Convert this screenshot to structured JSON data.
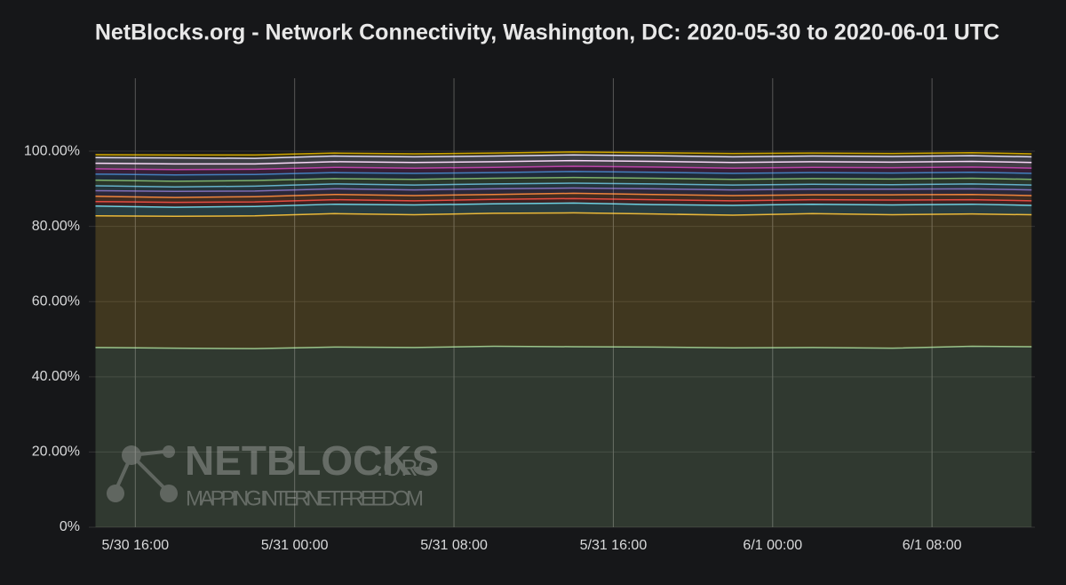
{
  "chart_data": {
    "type": "stacked_area",
    "title": "NetBlocks.org - Network Connectivity, Washington, DC: 2020-05-30 to 2020-06-01 UTC",
    "watermark": {
      "brand": "NETBLOCKS",
      "suffix": ".ORG",
      "tagline": "MAPPING INTERNET FREEDOM"
    },
    "x": [
      "5/30 14:00",
      "5/30 18:00",
      "5/30 22:00",
      "5/31 02:00",
      "5/31 06:00",
      "5/31 10:00",
      "5/31 14:00",
      "5/31 18:00",
      "5/31 22:00",
      "6/1 02:00",
      "6/1 06:00",
      "6/1 10:00",
      "6/1 13:00"
    ],
    "xlim": [
      "5/30 13:40",
      "6/1 13:10"
    ],
    "xticks": [
      "5/30 16:00",
      "5/31 00:00",
      "5/31 08:00",
      "5/31 16:00",
      "6/1 00:00",
      "6/1 08:00"
    ],
    "ylim": [
      0,
      119.4
    ],
    "yticks": [
      {
        "value": 0,
        "label": "0%"
      },
      {
        "value": 20,
        "label": "20.00%"
      },
      {
        "value": 40,
        "label": "40.00%"
      },
      {
        "value": 60,
        "label": "60.00%"
      },
      {
        "value": 80,
        "label": "80.00%"
      },
      {
        "value": 100,
        "label": "100.00%"
      }
    ],
    "grid": true,
    "fill_opacity": 0.2,
    "series": [
      {
        "color": "#9ac48a",
        "values": [
          47.8,
          47.6,
          47.5,
          47.9,
          47.8,
          48.1,
          48.0,
          47.9,
          47.7,
          47.8,
          47.6,
          48.1,
          48.0
        ]
      },
      {
        "color": "#eab839",
        "values": [
          35.0,
          35.1,
          35.3,
          35.5,
          35.3,
          35.4,
          35.6,
          35.4,
          35.3,
          35.6,
          35.5,
          35.2,
          35.1
        ]
      },
      {
        "color": "#6ed0e0",
        "values": [
          2.6,
          2.4,
          2.5,
          2.5,
          2.6,
          2.5,
          2.6,
          2.5,
          2.6,
          2.5,
          2.6,
          2.6,
          2.5
        ]
      },
      {
        "color": "#e24d42",
        "values": [
          1.2,
          1.3,
          1.2,
          1.2,
          1.1,
          1.2,
          1.2,
          1.3,
          1.2,
          1.2,
          1.3,
          1.2,
          1.2
        ]
      },
      {
        "color": "#ef843c",
        "values": [
          1.4,
          1.3,
          1.4,
          1.4,
          1.4,
          1.3,
          1.4,
          1.4,
          1.4,
          1.3,
          1.4,
          1.4,
          1.4
        ]
      },
      {
        "color": "#806eb7",
        "values": [
          1.5,
          1.6,
          1.5,
          1.5,
          1.5,
          1.5,
          1.4,
          1.5,
          1.5,
          1.5,
          1.5,
          1.5,
          1.5
        ]
      },
      {
        "color": "#64b0c8",
        "values": [
          1.3,
          1.2,
          1.3,
          1.3,
          1.3,
          1.3,
          1.3,
          1.3,
          1.3,
          1.3,
          1.2,
          1.3,
          1.3
        ]
      },
      {
        "color": "#7eb26d",
        "values": [
          1.5,
          1.5,
          1.5,
          1.4,
          1.5,
          1.5,
          1.5,
          1.5,
          1.5,
          1.5,
          1.5,
          1.5,
          1.5
        ]
      },
      {
        "color": "#447ebc",
        "values": [
          1.6,
          1.7,
          1.6,
          1.6,
          1.6,
          1.5,
          1.6,
          1.6,
          1.6,
          1.6,
          1.6,
          1.6,
          1.6
        ]
      },
      {
        "color": "#ba43a9",
        "values": [
          1.4,
          1.4,
          1.4,
          1.4,
          1.4,
          1.4,
          1.4,
          1.4,
          1.4,
          1.4,
          1.4,
          1.4,
          1.4
        ]
      },
      {
        "color": "#f9d9f9",
        "values": [
          1.5,
          1.5,
          1.4,
          1.5,
          1.5,
          1.5,
          1.5,
          1.5,
          1.5,
          1.5,
          1.5,
          1.5,
          1.5
        ]
      },
      {
        "color": "#dedaf7",
        "values": [
          1.5,
          1.6,
          1.5,
          1.5,
          1.5,
          1.5,
          1.5,
          1.5,
          1.5,
          1.5,
          1.5,
          1.5,
          1.5
        ]
      },
      {
        "color": "#cca300",
        "values": [
          0.8,
          0.8,
          0.9,
          0.8,
          0.8,
          0.8,
          0.8,
          0.8,
          0.9,
          0.8,
          0.8,
          0.8,
          0.8
        ]
      }
    ]
  }
}
